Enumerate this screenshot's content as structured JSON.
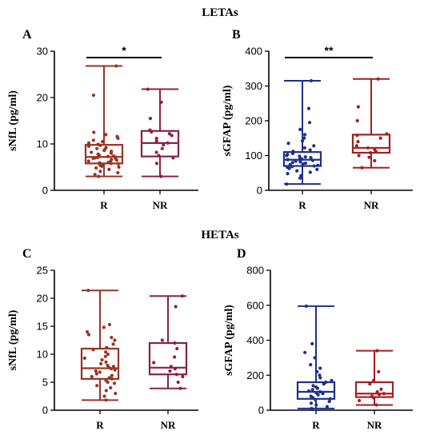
{
  "figure": {
    "title_top": "LETAs",
    "title_bottom": "HETAs"
  },
  "chart_data": [
    {
      "id": "A",
      "letter": "A",
      "type": "box",
      "ylabel": "sNfL (pg/ml)",
      "ylim": [
        0,
        30
      ],
      "yticks": [
        0,
        10,
        20,
        30
      ],
      "categories": [
        "R",
        "NR"
      ],
      "colors": [
        "#9a3324",
        "#8e1f45"
      ],
      "series": [
        {
          "min": 3.0,
          "q1": 5.8,
          "median": 7.2,
          "q3": 9.8,
          "max": 26.8,
          "points": [
            3.0,
            3.4,
            3.8,
            4.1,
            4.5,
            4.8,
            5.0,
            5.2,
            5.4,
            5.5,
            5.7,
            5.8,
            5.9,
            6.0,
            6.2,
            6.3,
            6.5,
            6.6,
            6.8,
            6.9,
            7.0,
            7.1,
            7.2,
            7.3,
            7.4,
            7.6,
            7.8,
            8.0,
            8.2,
            8.4,
            8.6,
            8.8,
            9.0,
            9.2,
            9.5,
            9.7,
            9.9,
            10.2,
            10.5,
            10.8,
            11.2,
            11.6,
            12.0,
            12.5,
            20.5,
            26.8
          ]
        },
        {
          "min": 3.0,
          "q1": 7.3,
          "median": 10.2,
          "q3": 12.8,
          "max": 21.8,
          "points": [
            3.0,
            5.8,
            7.0,
            7.5,
            8.2,
            9.0,
            9.8,
            10.2,
            10.6,
            11.2,
            11.8,
            12.2,
            12.6,
            13.0,
            15.5,
            19.0,
            21.8
          ]
        }
      ],
      "significance": "*"
    },
    {
      "id": "B",
      "letter": "B",
      "type": "box",
      "ylabel": "sGFAP (pg/ml)",
      "ylim": [
        0,
        400
      ],
      "yticks": [
        0,
        100,
        200,
        300,
        400
      ],
      "categories": [
        "R",
        "NR"
      ],
      "colors": [
        "#1f2f8f",
        "#a31f22"
      ],
      "series": [
        {
          "min": 18,
          "q1": 70,
          "median": 88,
          "q3": 110,
          "max": 315,
          "points": [
            18,
            35,
            42,
            48,
            52,
            56,
            60,
            63,
            66,
            68,
            70,
            72,
            74,
            76,
            78,
            80,
            82,
            84,
            86,
            88,
            90,
            92,
            94,
            96,
            98,
            100,
            103,
            106,
            108,
            110,
            112,
            116,
            122,
            128,
            135,
            142,
            150,
            160,
            175,
            195,
            235,
            315
          ]
        },
        {
          "min": 65,
          "q1": 108,
          "median": 122,
          "q3": 160,
          "max": 320,
          "points": [
            65,
            85,
            95,
            100,
            108,
            112,
            118,
            122,
            128,
            140,
            150,
            158,
            162,
            200,
            240,
            320
          ]
        }
      ],
      "significance": "**"
    },
    {
      "id": "C",
      "letter": "C",
      "type": "box",
      "ylabel": "sNfL (pg/ml)",
      "ylim": [
        0,
        25
      ],
      "yticks": [
        0,
        5,
        10,
        15,
        20,
        25
      ],
      "categories": [
        "R",
        "NR"
      ],
      "colors": [
        "#9a3324",
        "#8e1f45"
      ],
      "series": [
        {
          "min": 1.8,
          "q1": 5.6,
          "median": 7.5,
          "q3": 11.0,
          "max": 21.4,
          "points": [
            1.8,
            2.5,
            3.0,
            3.5,
            4.0,
            4.4,
            4.8,
            5.0,
            5.3,
            5.6,
            5.8,
            6.0,
            6.2,
            6.5,
            6.8,
            7.0,
            7.2,
            7.4,
            7.6,
            7.8,
            8.0,
            8.3,
            8.6,
            9.0,
            9.3,
            9.6,
            10.0,
            10.4,
            10.8,
            11.2,
            11.8,
            12.5,
            13.0,
            13.5,
            14.0,
            14.8,
            15.3,
            21.4
          ]
        },
        {
          "min": 3.9,
          "q1": 6.4,
          "median": 7.6,
          "q3": 12.0,
          "max": 20.4,
          "points": [
            3.9,
            5.0,
            6.0,
            6.4,
            7.0,
            7.4,
            7.8,
            8.5,
            9.5,
            11.0,
            12.0,
            12.5,
            18.5,
            20.4
          ]
        }
      ],
      "significance": ""
    },
    {
      "id": "D",
      "letter": "D",
      "type": "box",
      "ylabel": "sGFAP (pg/ml)",
      "ylim": [
        0,
        800
      ],
      "yticks": [
        0,
        200,
        400,
        600,
        800
      ],
      "categories": [
        "R",
        "NR"
      ],
      "colors": [
        "#1f2f8f",
        "#a31f22"
      ],
      "series": [
        {
          "min": 10,
          "q1": 65,
          "median": 105,
          "q3": 160,
          "max": 595,
          "points": [
            10,
            20,
            30,
            40,
            50,
            60,
            65,
            72,
            80,
            88,
            95,
            100,
            105,
            110,
            118,
            125,
            132,
            140,
            150,
            160,
            170,
            185,
            200,
            220,
            240,
            260,
            300,
            330,
            380,
            595
          ]
        },
        {
          "min": 30,
          "q1": 75,
          "median": 95,
          "q3": 160,
          "max": 340,
          "points": [
            30,
            55,
            70,
            80,
            90,
            95,
            105,
            120,
            150,
            170,
            220,
            340
          ]
        }
      ],
      "significance": ""
    }
  ]
}
